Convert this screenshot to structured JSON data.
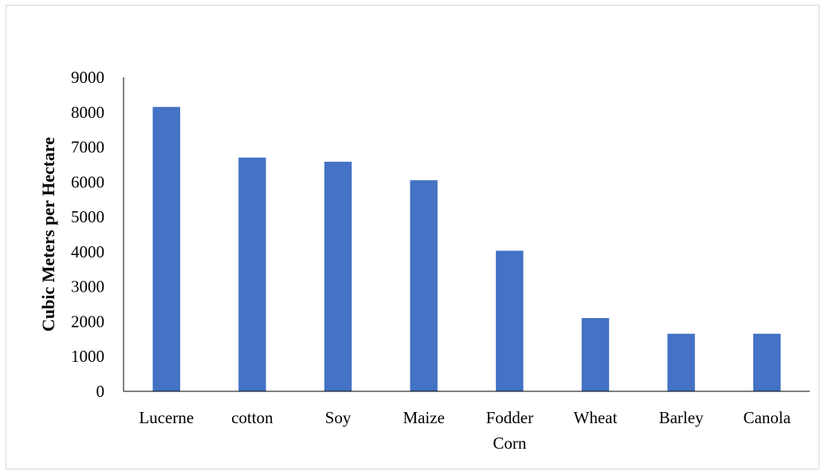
{
  "chart_data": {
    "type": "bar",
    "title": "",
    "xlabel": "",
    "ylabel": "Cubic Meters per Hectare",
    "categories": [
      "Lucerne",
      "cotton",
      "Soy",
      "Maize",
      "Fodder Corn",
      "Wheat",
      "Barley",
      "Canola"
    ],
    "category_lines": [
      [
        "Lucerne"
      ],
      [
        "cotton"
      ],
      [
        "Soy"
      ],
      [
        "Maize"
      ],
      [
        "Fodder",
        "Corn"
      ],
      [
        "Wheat"
      ],
      [
        "Barley"
      ],
      [
        "Canola"
      ]
    ],
    "values": [
      8150,
      6700,
      6580,
      6050,
      4030,
      2100,
      1650,
      1650
    ],
    "ylim": [
      0,
      9000
    ],
    "yticks": [
      0,
      1000,
      2000,
      3000,
      4000,
      5000,
      6000,
      7000,
      8000,
      9000
    ],
    "grid": false,
    "legend": "none",
    "bar_color": "#4472C4",
    "axis_color": "#000000"
  }
}
